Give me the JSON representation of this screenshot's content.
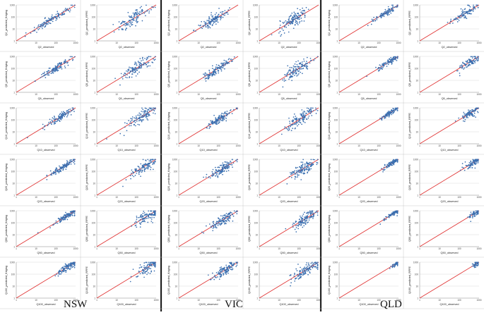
{
  "groups": [
    {
      "label": "NSW"
    },
    {
      "label": "VIC"
    },
    {
      "label": "QLD"
    }
  ],
  "chart_data": [
    {
      "type": "scatter",
      "group": "NSW",
      "model": "Kriging",
      "xlabel": "Q2_observed",
      "ylabel": "Q2_predicted_Kriging",
      "xscale": "log",
      "yscale": "log",
      "xlim": [
        1,
        1000
      ],
      "ylim": [
        1,
        1000
      ],
      "reference_line": "1:1",
      "seed": 11,
      "n": 120,
      "center": 1.75,
      "spread": 0.45,
      "noise": 0.16
    },
    {
      "type": "scatter",
      "group": "NSW",
      "model": "RFFE",
      "xlabel": "Q2_observed",
      "ylabel": "Q2_predicted_RFFE",
      "xscale": "log",
      "yscale": "log",
      "xlim": [
        1,
        1000
      ],
      "ylim": [
        1,
        1000
      ],
      "reference_line": "1:1",
      "seed": 12,
      "n": 120,
      "center": 1.8,
      "spread": 0.45,
      "noise": 0.3
    },
    {
      "type": "scatter",
      "group": "VIC",
      "model": "Kriging",
      "xlabel": "Q2_observed",
      "ylabel": "Q2_predicted_Kriging",
      "xscale": "log",
      "yscale": "log",
      "xlim": [
        1,
        1000
      ],
      "ylim": [
        1,
        1000
      ],
      "reference_line": "1:1",
      "seed": 13,
      "n": 130,
      "center": 1.7,
      "spread": 0.38,
      "noise": 0.2
    },
    {
      "type": "scatter",
      "group": "VIC",
      "model": "RFFE",
      "xlabel": "Q2_observed",
      "ylabel": "Q2_predicted_RFFE",
      "xscale": "log",
      "yscale": "log",
      "xlim": [
        1,
        1000
      ],
      "ylim": [
        1,
        1000
      ],
      "reference_line": "1:1",
      "seed": 14,
      "n": 130,
      "center": 1.7,
      "spread": 0.38,
      "noise": 0.3
    },
    {
      "type": "scatter",
      "group": "QLD",
      "model": "Kriging",
      "xlabel": "Q2_observed",
      "ylabel": "Q2_predicted_Kriging",
      "xscale": "log",
      "yscale": "log",
      "xlim": [
        1,
        1000
      ],
      "ylim": [
        1,
        1000
      ],
      "reference_line": "1:1",
      "seed": 15,
      "n": 100,
      "center": 2.3,
      "spread": 0.35,
      "noise": 0.14
    },
    {
      "type": "scatter",
      "group": "QLD",
      "model": "RFFE",
      "xlabel": "Q2_observed",
      "ylabel": "Q2_predicted_RFFE",
      "xscale": "log",
      "yscale": "log",
      "xlim": [
        1,
        1000
      ],
      "ylim": [
        1,
        1000
      ],
      "reference_line": "1:1",
      "seed": 16,
      "n": 100,
      "center": 2.3,
      "spread": 0.35,
      "noise": 0.22
    },
    {
      "type": "scatter",
      "group": "NSW",
      "model": "Kriging",
      "xlabel": "Q5_observed",
      "ylabel": "Q5_predicted_Kriging",
      "xscale": "log",
      "yscale": "log",
      "xlim": [
        1,
        1000
      ],
      "ylim": [
        1,
        1000
      ],
      "reference_line": "1:1",
      "seed": 21,
      "n": 120,
      "center": 2.0,
      "spread": 0.42,
      "noise": 0.15
    },
    {
      "type": "scatter",
      "group": "NSW",
      "model": "RFFE",
      "xlabel": "Q5_observed",
      "ylabel": "Q5_predicted_RFFE",
      "xscale": "log",
      "yscale": "log",
      "xlim": [
        1,
        1000
      ],
      "ylim": [
        1,
        1000
      ],
      "reference_line": "1:1",
      "seed": 22,
      "n": 120,
      "center": 2.05,
      "spread": 0.42,
      "noise": 0.28
    },
    {
      "type": "scatter",
      "group": "VIC",
      "model": "Kriging",
      "xlabel": "Q5_observed",
      "ylabel": "Q5_predicted_Kriging",
      "xscale": "log",
      "yscale": "log",
      "xlim": [
        1,
        1000
      ],
      "ylim": [
        1,
        1000
      ],
      "reference_line": "1:1",
      "seed": 23,
      "n": 130,
      "center": 1.9,
      "spread": 0.38,
      "noise": 0.2
    },
    {
      "type": "scatter",
      "group": "VIC",
      "model": "RFFE",
      "xlabel": "Q5_observed",
      "ylabel": "Q5_predicted_RFFE",
      "xscale": "log",
      "yscale": "log",
      "xlim": [
        1,
        1000
      ],
      "ylim": [
        1,
        1000
      ],
      "reference_line": "1:1",
      "seed": 24,
      "n": 130,
      "center": 1.95,
      "spread": 0.38,
      "noise": 0.28
    },
    {
      "type": "scatter",
      "group": "QLD",
      "model": "Kriging",
      "xlabel": "Q5_observed",
      "ylabel": "Q5_predicted_Kriging",
      "xscale": "log",
      "yscale": "log",
      "xlim": [
        1,
        1000
      ],
      "ylim": [
        1,
        1000
      ],
      "reference_line": "1:1",
      "seed": 25,
      "n": 100,
      "center": 2.45,
      "spread": 0.3,
      "noise": 0.12
    },
    {
      "type": "scatter",
      "group": "QLD",
      "model": "RFFE",
      "xlabel": "Q5_observed",
      "ylabel": "Q5_predicted_RFFE",
      "xscale": "log",
      "yscale": "log",
      "xlim": [
        1,
        1000
      ],
      "ylim": [
        1,
        1000
      ],
      "reference_line": "1:1",
      "seed": 26,
      "n": 100,
      "center": 2.5,
      "spread": 0.3,
      "noise": 0.2
    },
    {
      "type": "scatter",
      "group": "NSW",
      "model": "Kriging",
      "xlabel": "Q10_observed",
      "ylabel": "Q10_predicted_Kriging",
      "xscale": "log",
      "yscale": "log",
      "xlim": [
        1,
        1000
      ],
      "ylim": [
        1,
        1000
      ],
      "reference_line": "1:1",
      "seed": 31,
      "n": 120,
      "center": 2.2,
      "spread": 0.4,
      "noise": 0.14
    },
    {
      "type": "scatter",
      "group": "NSW",
      "model": "RFFE",
      "xlabel": "Q10_observed",
      "ylabel": "Q10_predicted_RFFE",
      "xscale": "log",
      "yscale": "log",
      "xlim": [
        1,
        1000
      ],
      "ylim": [
        1,
        1000
      ],
      "reference_line": "1:1",
      "seed": 32,
      "n": 120,
      "center": 2.25,
      "spread": 0.4,
      "noise": 0.28
    },
    {
      "type": "scatter",
      "group": "VIC",
      "model": "Kriging",
      "xlabel": "Q10_observed",
      "ylabel": "Q10_predicted_Kriging",
      "xscale": "log",
      "yscale": "log",
      "xlim": [
        1,
        1000
      ],
      "ylim": [
        1,
        1000
      ],
      "reference_line": "1:1",
      "seed": 33,
      "n": 130,
      "center": 2.05,
      "spread": 0.36,
      "noise": 0.18
    },
    {
      "type": "scatter",
      "group": "VIC",
      "model": "RFFE",
      "xlabel": "Q10_observed",
      "ylabel": "Q10_predicted_RFFE",
      "xscale": "log",
      "yscale": "log",
      "xlim": [
        1,
        1000
      ],
      "ylim": [
        1,
        1000
      ],
      "reference_line": "1:1",
      "seed": 34,
      "n": 130,
      "center": 2.1,
      "spread": 0.36,
      "noise": 0.26
    },
    {
      "type": "scatter",
      "group": "QLD",
      "model": "Kriging",
      "xlabel": "Q10_observed",
      "ylabel": "Q10_predicted_Kriging",
      "xscale": "log",
      "yscale": "log",
      "xlim": [
        1,
        1000
      ],
      "ylim": [
        1,
        1000
      ],
      "reference_line": "1:1",
      "seed": 35,
      "n": 100,
      "center": 2.6,
      "spread": 0.25,
      "noise": 0.1
    },
    {
      "type": "scatter",
      "group": "QLD",
      "model": "RFFE",
      "xlabel": "Q10_observed",
      "ylabel": "Q10_predicted_RFFE",
      "xscale": "log",
      "yscale": "log",
      "xlim": [
        1,
        1000
      ],
      "ylim": [
        1,
        1000
      ],
      "reference_line": "1:1",
      "seed": 36,
      "n": 100,
      "center": 2.6,
      "spread": 0.28,
      "noise": 0.18
    },
    {
      "type": "scatter",
      "group": "NSW",
      "model": "Kriging",
      "xlabel": "Q20_observed",
      "ylabel": "Q20_predicted_Kriging",
      "xscale": "log",
      "yscale": "log",
      "xlim": [
        1,
        1000
      ],
      "ylim": [
        1,
        1000
      ],
      "reference_line": "1:1",
      "seed": 41,
      "n": 120,
      "center": 2.4,
      "spread": 0.38,
      "noise": 0.14
    },
    {
      "type": "scatter",
      "group": "NSW",
      "model": "RFFE",
      "xlabel": "Q20_observed",
      "ylabel": "Q20_predicted_RFFE",
      "xscale": "log",
      "yscale": "log",
      "xlim": [
        1,
        1000
      ],
      "ylim": [
        1,
        1000
      ],
      "reference_line": "1:1",
      "seed": 42,
      "n": 120,
      "center": 2.4,
      "spread": 0.38,
      "noise": 0.28
    },
    {
      "type": "scatter",
      "group": "VIC",
      "model": "Kriging",
      "xlabel": "Q20_observed",
      "ylabel": "Q20_predicted_Kriging",
      "xscale": "log",
      "yscale": "log",
      "xlim": [
        1,
        1000
      ],
      "ylim": [
        1,
        1000
      ],
      "reference_line": "1:1",
      "seed": 43,
      "n": 130,
      "center": 2.15,
      "spread": 0.35,
      "noise": 0.2
    },
    {
      "type": "scatter",
      "group": "VIC",
      "model": "RFFE",
      "xlabel": "Q20_observed",
      "ylabel": "Q20_predicted_RFFE",
      "xscale": "log",
      "yscale": "log",
      "xlim": [
        1,
        1000
      ],
      "ylim": [
        1,
        1000
      ],
      "reference_line": "1:1",
      "seed": 44,
      "n": 130,
      "center": 2.2,
      "spread": 0.35,
      "noise": 0.26
    },
    {
      "type": "scatter",
      "group": "QLD",
      "model": "Kriging",
      "xlabel": "Q20_observed",
      "ylabel": "Q20_predicted_Kriging",
      "xscale": "log",
      "yscale": "log",
      "xlim": [
        1,
        1000
      ],
      "ylim": [
        1,
        1000
      ],
      "reference_line": "1:1",
      "seed": 45,
      "n": 100,
      "center": 2.7,
      "spread": 0.22,
      "noise": 0.1
    },
    {
      "type": "scatter",
      "group": "QLD",
      "model": "RFFE",
      "xlabel": "Q20_observed",
      "ylabel": "Q20_predicted_RFFE",
      "xscale": "log",
      "yscale": "log",
      "xlim": [
        1,
        1000
      ],
      "ylim": [
        1,
        1000
      ],
      "reference_line": "1:1",
      "seed": 46,
      "n": 100,
      "center": 2.72,
      "spread": 0.22,
      "noise": 0.16
    },
    {
      "type": "scatter",
      "group": "NSW",
      "model": "Kriging",
      "xlabel": "Q50_observed",
      "ylabel": "Q50_predicted_Kriging",
      "xscale": "log",
      "yscale": "log",
      "xlim": [
        1,
        1000
      ],
      "ylim": [
        1,
        1000
      ],
      "reference_line": "1:1",
      "seed": 51,
      "n": 120,
      "center": 2.55,
      "spread": 0.35,
      "noise": 0.14
    },
    {
      "type": "scatter",
      "group": "NSW",
      "model": "RFFE",
      "xlabel": "Q50_observed",
      "ylabel": "Q50_predicted_RFFE",
      "xscale": "log",
      "yscale": "log",
      "xlim": [
        1,
        1000
      ],
      "ylim": [
        1,
        1000
      ],
      "reference_line": "1:1",
      "seed": 52,
      "n": 120,
      "center": 2.55,
      "spread": 0.35,
      "noise": 0.28
    },
    {
      "type": "scatter",
      "group": "VIC",
      "model": "Kriging",
      "xlabel": "Q50_observed",
      "ylabel": "Q50_predicted_Kriging",
      "xscale": "log",
      "yscale": "log",
      "xlim": [
        1,
        1000
      ],
      "ylim": [
        1,
        1000
      ],
      "reference_line": "1:1",
      "seed": 53,
      "n": 130,
      "center": 2.25,
      "spread": 0.34,
      "noise": 0.2
    },
    {
      "type": "scatter",
      "group": "VIC",
      "model": "RFFE",
      "xlabel": "Q50_observed",
      "ylabel": "Q50_predicted_RFFE",
      "xscale": "log",
      "yscale": "log",
      "xlim": [
        1,
        1000
      ],
      "ylim": [
        1,
        1000
      ],
      "reference_line": "1:1",
      "seed": 54,
      "n": 130,
      "center": 2.3,
      "spread": 0.34,
      "noise": 0.26
    },
    {
      "type": "scatter",
      "group": "QLD",
      "model": "Kriging",
      "xlabel": "Q50_observed",
      "ylabel": "Q50_predicted_Kriging",
      "xscale": "log",
      "yscale": "log",
      "xlim": [
        1,
        1000
      ],
      "ylim": [
        1,
        1000
      ],
      "reference_line": "1:1",
      "seed": 55,
      "n": 90,
      "center": 2.8,
      "spread": 0.2,
      "noise": 0.09
    },
    {
      "type": "scatter",
      "group": "QLD",
      "model": "RFFE",
      "xlabel": "Q50_observed",
      "ylabel": "Q50_predicted_RFFE",
      "xscale": "log",
      "yscale": "log",
      "xlim": [
        1,
        1000
      ],
      "ylim": [
        1,
        1000
      ],
      "reference_line": "1:1",
      "seed": 56,
      "n": 80,
      "center": 2.82,
      "spread": 0.18,
      "noise": 0.14
    },
    {
      "type": "scatter",
      "group": "NSW",
      "model": "Kriging",
      "xlabel": "Q100_observed",
      "ylabel": "Q100_predicted_Kriging",
      "xscale": "log",
      "yscale": "log",
      "xlim": [
        1,
        1000
      ],
      "ylim": [
        1,
        1000
      ],
      "reference_line": "1:1",
      "seed": 61,
      "n": 120,
      "center": 2.65,
      "spread": 0.34,
      "noise": 0.14
    },
    {
      "type": "scatter",
      "group": "NSW",
      "model": "RFFE",
      "xlabel": "Q100_observed",
      "ylabel": "Q100_predicted_RFFE",
      "xscale": "log",
      "yscale": "log",
      "xlim": [
        1,
        1000
      ],
      "ylim": [
        1,
        1000
      ],
      "reference_line": "1:1",
      "seed": 62,
      "n": 120,
      "center": 2.65,
      "spread": 0.34,
      "noise": 0.28
    },
    {
      "type": "scatter",
      "group": "VIC",
      "model": "Kriging",
      "xlabel": "Q100_observed",
      "ylabel": "Q100_predicted_Kriging",
      "xscale": "log",
      "yscale": "log",
      "xlim": [
        1,
        1000
      ],
      "ylim": [
        1,
        1000
      ],
      "reference_line": "1:1",
      "seed": 63,
      "n": 130,
      "center": 2.35,
      "spread": 0.34,
      "noise": 0.2
    },
    {
      "type": "scatter",
      "group": "VIC",
      "model": "RFFE",
      "xlabel": "Q100_observed",
      "ylabel": "Q100_predicted_RFFE",
      "xscale": "log",
      "yscale": "log",
      "xlim": [
        1,
        1000
      ],
      "ylim": [
        1,
        1000
      ],
      "reference_line": "1:1",
      "seed": 64,
      "n": 130,
      "center": 2.4,
      "spread": 0.34,
      "noise": 0.26
    },
    {
      "type": "scatter",
      "group": "QLD",
      "model": "Kriging",
      "xlabel": "Q100_observed",
      "ylabel": "Q100_predicted_Kriging",
      "xscale": "log",
      "yscale": "log",
      "xlim": [
        1,
        1000
      ],
      "ylim": [
        1,
        1000
      ],
      "reference_line": "1:1",
      "seed": 65,
      "n": 70,
      "center": 2.9,
      "spread": 0.15,
      "noise": 0.08
    },
    {
      "type": "scatter",
      "group": "QLD",
      "model": "RFFE",
      "xlabel": "Q100_observed",
      "ylabel": "Q100_predicted_RFFE",
      "xscale": "log",
      "yscale": "log",
      "xlim": [
        1,
        1000
      ],
      "ylim": [
        1,
        1000
      ],
      "reference_line": "1:1",
      "seed": 66,
      "n": 60,
      "center": 2.9,
      "spread": 0.15,
      "noise": 0.12
    }
  ],
  "tick_labels": [
    "1",
    "10",
    "100",
    "1000"
  ],
  "colors": {
    "points": "#3a6fb0",
    "reference_line": "#e03030",
    "grid": "#d8d8d8",
    "frame": "#9a9a9a",
    "divider": "#222222"
  }
}
